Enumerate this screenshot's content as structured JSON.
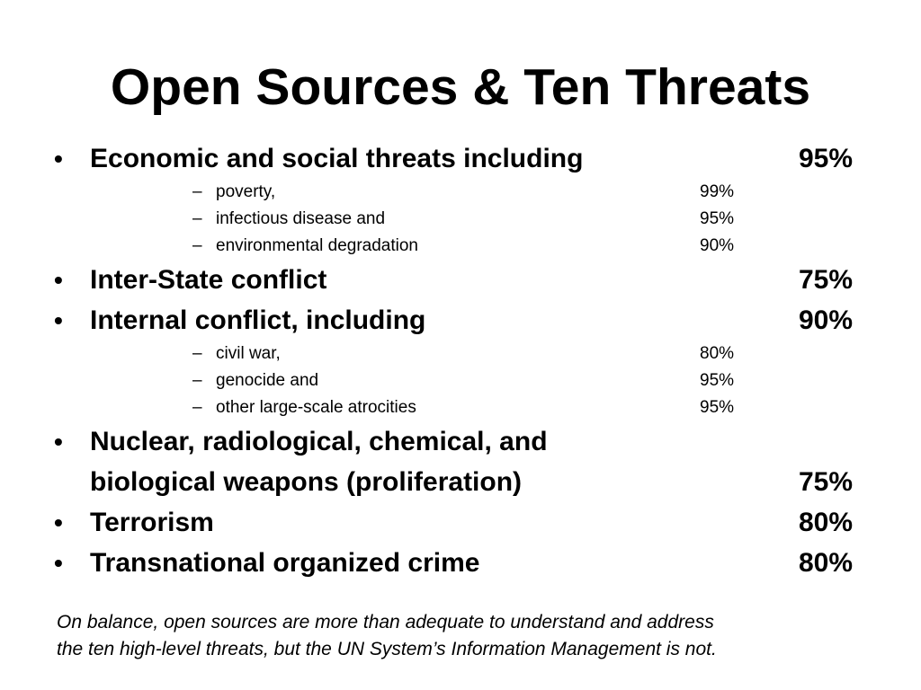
{
  "slide": {
    "title": "Open Sources & Ten Threats",
    "bullet_symbol": "•",
    "dash_symbol": "–",
    "bullets": [
      {
        "text": "Economic and social threats including",
        "percent": "95%",
        "subitems": [
          {
            "text": "poverty,",
            "percent": "99%"
          },
          {
            "text": "infectious disease and",
            "percent": "95%"
          },
          {
            "text": "environmental degradation",
            "percent": "90%"
          }
        ]
      },
      {
        "text": "Inter-State conflict",
        "percent": "75%"
      },
      {
        "text": "Internal conflict, including",
        "percent": "90%",
        "subitems": [
          {
            "text": "civil war,",
            "percent": "80%"
          },
          {
            "text": "genocide and",
            "percent": "95%"
          },
          {
            "text": "other large-scale atrocities",
            "percent": "95%"
          }
        ]
      },
      {
        "text_line1": "Nuclear, radiological, chemical, and",
        "text_line2": "biological weapons (proliferation)",
        "percent": "75%"
      },
      {
        "text": "Terrorism",
        "percent": "80%"
      },
      {
        "text": "Transnational organized crime",
        "percent": "80%"
      }
    ],
    "footer_line1": "On balance, open sources are more than adequate to understand and address",
    "footer_line2": "the ten high-level threats, but the UN System’s Information Management is not."
  }
}
